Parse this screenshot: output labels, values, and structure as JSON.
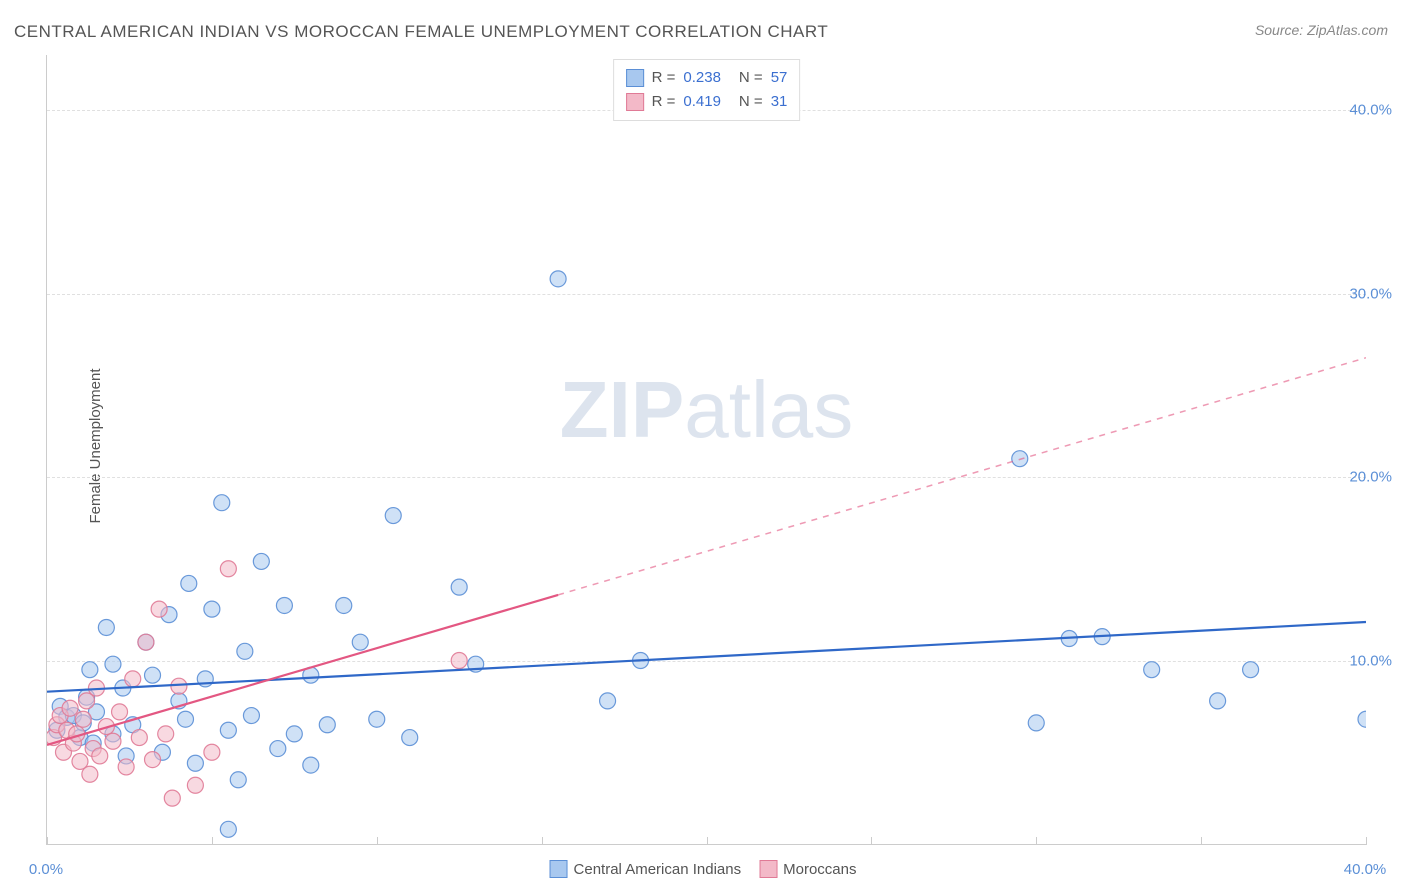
{
  "title": "CENTRAL AMERICAN INDIAN VS MOROCCAN FEMALE UNEMPLOYMENT CORRELATION CHART",
  "source_label": "Source:",
  "source_value": "ZipAtlas.com",
  "watermark_front": "ZIP",
  "watermark_back": "atlas",
  "y_axis_title": "Female Unemployment",
  "chart": {
    "type": "scatter",
    "xlim": [
      0,
      40
    ],
    "ylim": [
      0,
      43
    ],
    "x_ticks": [
      0,
      5,
      10,
      15,
      20,
      25,
      30,
      35,
      40
    ],
    "x_tick_labels": {
      "0": "0.0%",
      "40": "40.0%"
    },
    "y_ticks": [
      10,
      20,
      30,
      40
    ],
    "y_tick_labels": {
      "10": "10.0%",
      "20": "20.0%",
      "30": "30.0%",
      "40": "40.0%"
    },
    "grid_color": "#e0e0e0",
    "background_color": "#ffffff",
    "axis_color": "#cccccc",
    "tick_label_color": "#5b8fd6",
    "marker_radius": 8,
    "marker_opacity": 0.55,
    "marker_stroke_opacity": 0.9,
    "trendline_width": 2.2,
    "series": [
      {
        "name": "Central American Indians",
        "color_fill": "#a8c8ef",
        "color_stroke": "#5b8fd6",
        "trend_color": "#2f68c8",
        "R": "0.238",
        "N": "57",
        "trend": {
          "x1": 0,
          "y1": 8.3,
          "x2": 40,
          "y2": 12.1,
          "solid_until": 40
        },
        "points": [
          [
            0.3,
            6.2
          ],
          [
            0.4,
            7.5
          ],
          [
            0.6,
            6.9
          ],
          [
            0.8,
            7.0
          ],
          [
            1.0,
            5.8
          ],
          [
            1.1,
            6.6
          ],
          [
            1.2,
            8.0
          ],
          [
            1.3,
            9.5
          ],
          [
            1.4,
            5.5
          ],
          [
            1.5,
            7.2
          ],
          [
            1.8,
            11.8
          ],
          [
            2.0,
            6.0
          ],
          [
            2.0,
            9.8
          ],
          [
            2.3,
            8.5
          ],
          [
            2.4,
            4.8
          ],
          [
            2.6,
            6.5
          ],
          [
            3.0,
            11.0
          ],
          [
            3.2,
            9.2
          ],
          [
            3.5,
            5.0
          ],
          [
            3.7,
            12.5
          ],
          [
            4.0,
            7.8
          ],
          [
            4.2,
            6.8
          ],
          [
            4.3,
            14.2
          ],
          [
            4.5,
            4.4
          ],
          [
            4.8,
            9.0
          ],
          [
            5.0,
            12.8
          ],
          [
            5.3,
            18.6
          ],
          [
            5.5,
            6.2
          ],
          [
            5.8,
            3.5
          ],
          [
            6.0,
            10.5
          ],
          [
            6.2,
            7.0
          ],
          [
            6.5,
            15.4
          ],
          [
            7.0,
            5.2
          ],
          [
            7.2,
            13.0
          ],
          [
            7.5,
            6.0
          ],
          [
            8.0,
            9.2
          ],
          [
            8.0,
            4.3
          ],
          [
            8.5,
            6.5
          ],
          [
            9.0,
            13.0
          ],
          [
            9.5,
            11.0
          ],
          [
            10.0,
            6.8
          ],
          [
            10.5,
            17.9
          ],
          [
            11.0,
            5.8
          ],
          [
            12.5,
            14.0
          ],
          [
            13.0,
            9.8
          ],
          [
            15.5,
            30.8
          ],
          [
            17.0,
            7.8
          ],
          [
            18.0,
            10.0
          ],
          [
            29.5,
            21.0
          ],
          [
            30.0,
            6.6
          ],
          [
            31.0,
            11.2
          ],
          [
            32.0,
            11.3
          ],
          [
            33.5,
            9.5
          ],
          [
            35.5,
            7.8
          ],
          [
            36.5,
            9.5
          ],
          [
            40.0,
            6.8
          ],
          [
            5.5,
            0.8
          ]
        ]
      },
      {
        "name": "Moroccans",
        "color_fill": "#f3b9c8",
        "color_stroke": "#e07a96",
        "trend_color": "#e35782",
        "R": "0.419",
        "N": "31",
        "trend": {
          "x1": 0,
          "y1": 5.4,
          "x2": 40,
          "y2": 26.5,
          "solid_until": 15.5
        },
        "points": [
          [
            0.2,
            5.8
          ],
          [
            0.3,
            6.5
          ],
          [
            0.4,
            7.0
          ],
          [
            0.5,
            5.0
          ],
          [
            0.6,
            6.2
          ],
          [
            0.7,
            7.4
          ],
          [
            0.8,
            5.5
          ],
          [
            0.9,
            6.0
          ],
          [
            1.0,
            4.5
          ],
          [
            1.1,
            6.8
          ],
          [
            1.2,
            7.8
          ],
          [
            1.3,
            3.8
          ],
          [
            1.4,
            5.2
          ],
          [
            1.5,
            8.5
          ],
          [
            1.6,
            4.8
          ],
          [
            1.8,
            6.4
          ],
          [
            2.0,
            5.6
          ],
          [
            2.2,
            7.2
          ],
          [
            2.4,
            4.2
          ],
          [
            2.6,
            9.0
          ],
          [
            2.8,
            5.8
          ],
          [
            3.0,
            11.0
          ],
          [
            3.2,
            4.6
          ],
          [
            3.4,
            12.8
          ],
          [
            3.6,
            6.0
          ],
          [
            3.8,
            2.5
          ],
          [
            4.0,
            8.6
          ],
          [
            4.5,
            3.2
          ],
          [
            5.0,
            5.0
          ],
          [
            5.5,
            15.0
          ],
          [
            12.5,
            10.0
          ]
        ]
      }
    ]
  },
  "legend_top": {
    "rows": [
      {
        "swatch_fill": "#a8c8ef",
        "swatch_stroke": "#5b8fd6",
        "items": [
          "R =",
          "0.238",
          "N =",
          "57"
        ]
      },
      {
        "swatch_fill": "#f3b9c8",
        "swatch_stroke": "#e07a96",
        "items": [
          "R =",
          "0.419",
          "N =",
          "31"
        ]
      }
    ]
  },
  "legend_bottom": [
    {
      "swatch_fill": "#a8c8ef",
      "swatch_stroke": "#5b8fd6",
      "label": "Central American Indians"
    },
    {
      "swatch_fill": "#f3b9c8",
      "swatch_stroke": "#e07a96",
      "label": "Moroccans"
    }
  ]
}
